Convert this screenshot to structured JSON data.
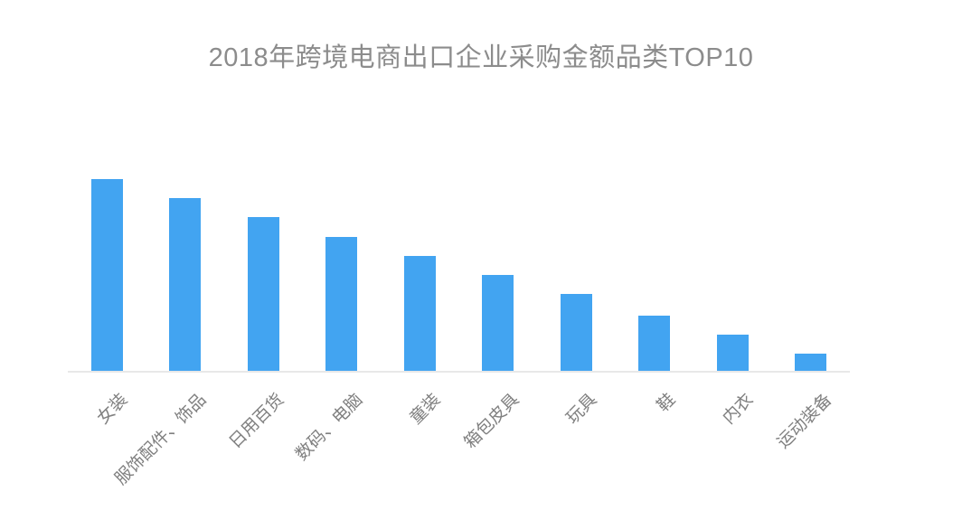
{
  "chart_data": {
    "type": "bar",
    "title": "2018年跨境电商出口企业采购金额品类TOP10",
    "categories": [
      "女装",
      "服饰配件、饰品",
      "日用百货",
      "数码、电脑",
      "童装",
      "箱包皮具",
      "玩具",
      "鞋",
      "内衣",
      "运动装备"
    ],
    "values": [
      100,
      90,
      80,
      70,
      60,
      50,
      40,
      29,
      19,
      9
    ],
    "xlabel": "",
    "ylabel": "",
    "ylim": [
      0,
      100
    ],
    "grid": false,
    "legend": false,
    "x_label_rotation_deg": 45,
    "colors": {
      "bar": "#42a4f1",
      "title_text": "#8c8c8c",
      "axis_label_text": "#808080",
      "axis_line": "#e8e8e8",
      "background": "#ffffff"
    }
  }
}
